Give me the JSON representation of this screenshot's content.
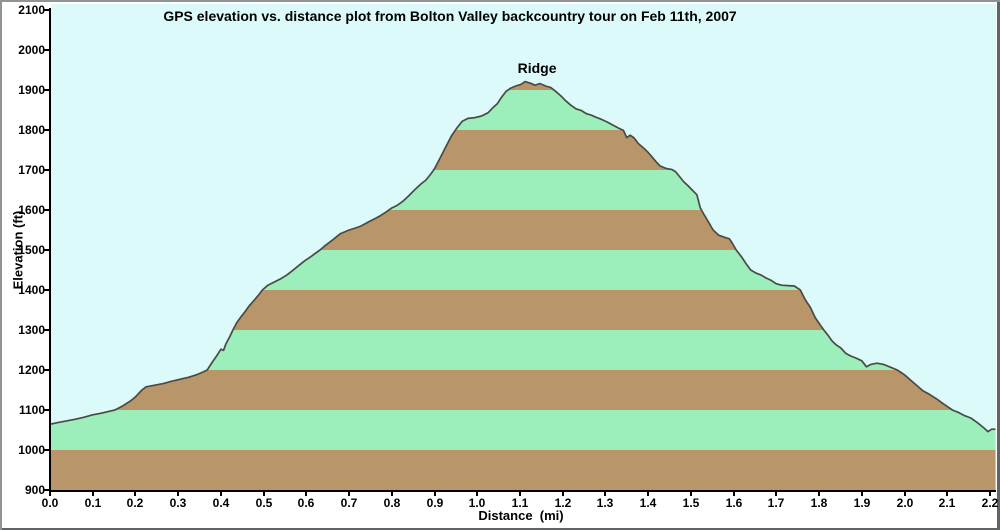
{
  "chart": {
    "title": "GPS elevation vs. distance plot from Bolton Valley backcountry tour on Feb 11th, 2007",
    "x_axis_label": "Distance  (mi)",
    "y_axis_label": "Elevation (ft)",
    "annotation_label": "Ridge"
  },
  "colors": {
    "plot_background": "#dcfafa",
    "band_brown": "#b9966a",
    "band_green": "#9ceebb",
    "curve_line": "#4a4a44",
    "axis": "#000000",
    "text": "#000000",
    "margin_background": "#ffffff"
  },
  "chart_data": {
    "type": "area",
    "title": "GPS elevation vs. distance plot from Bolton Valley backcountry tour on Feb 11th, 2007",
    "xlabel": "Distance (mi)",
    "ylabel": "Elevation (ft)",
    "xlim": [
      0.0,
      2.2
    ],
    "ylim": [
      900,
      2100
    ],
    "grid": false,
    "legend": "none",
    "x_ticks": [
      "0.0",
      "0.1",
      "0.2",
      "0.3",
      "0.4",
      "0.5",
      "0.6",
      "0.7",
      "0.8",
      "0.9",
      "1.0",
      "1.1",
      "1.2",
      "1.3",
      "1.4",
      "1.5",
      "1.6",
      "1.7",
      "1.8",
      "1.9",
      "2.0",
      "2.1",
      "2.2"
    ],
    "y_ticks": [
      900,
      1000,
      1100,
      1200,
      1300,
      1400,
      1500,
      1600,
      1700,
      1800,
      1900,
      2000,
      2100
    ],
    "band_interval_ft": 100,
    "band_colors_alternating_from_900": [
      "brown",
      "green"
    ],
    "annotations": [
      {
        "text": "Ridge",
        "x_mi": 1.14,
        "y_ft": 1975
      }
    ],
    "peak": {
      "x_mi": 1.112,
      "y_ft": 1921
    },
    "start_elevation_ft": 1065,
    "end_elevation_ft": 1052,
    "profile": [
      [
        0.0,
        1065
      ],
      [
        0.02,
        1069
      ],
      [
        0.04,
        1073
      ],
      [
        0.06,
        1077
      ],
      [
        0.08,
        1082
      ],
      [
        0.1,
        1088
      ],
      [
        0.12,
        1092
      ],
      [
        0.14,
        1097
      ],
      [
        0.152,
        1100
      ],
      [
        0.17,
        1110
      ],
      [
        0.19,
        1124
      ],
      [
        0.2,
        1133
      ],
      [
        0.215,
        1150
      ],
      [
        0.225,
        1158
      ],
      [
        0.245,
        1162
      ],
      [
        0.265,
        1166
      ],
      [
        0.285,
        1172
      ],
      [
        0.305,
        1177
      ],
      [
        0.325,
        1182
      ],
      [
        0.345,
        1189
      ],
      [
        0.358,
        1195
      ],
      [
        0.368,
        1200
      ],
      [
        0.38,
        1220
      ],
      [
        0.39,
        1235
      ],
      [
        0.4,
        1252
      ],
      [
        0.406,
        1249
      ],
      [
        0.412,
        1266
      ],
      [
        0.42,
        1282
      ],
      [
        0.428,
        1300
      ],
      [
        0.437,
        1318
      ],
      [
        0.447,
        1333
      ],
      [
        0.456,
        1345
      ],
      [
        0.466,
        1360
      ],
      [
        0.476,
        1372
      ],
      [
        0.487,
        1386
      ],
      [
        0.497,
        1400
      ],
      [
        0.51,
        1412
      ],
      [
        0.525,
        1420
      ],
      [
        0.54,
        1428
      ],
      [
        0.555,
        1438
      ],
      [
        0.568,
        1449
      ],
      [
        0.582,
        1461
      ],
      [
        0.596,
        1473
      ],
      [
        0.61,
        1483
      ],
      [
        0.632,
        1500
      ],
      [
        0.645,
        1512
      ],
      [
        0.66,
        1524
      ],
      [
        0.68,
        1541
      ],
      [
        0.7,
        1550
      ],
      [
        0.715,
        1555
      ],
      [
        0.728,
        1560
      ],
      [
        0.745,
        1570
      ],
      [
        0.76,
        1578
      ],
      [
        0.772,
        1585
      ],
      [
        0.785,
        1594
      ],
      [
        0.8,
        1605
      ],
      [
        0.813,
        1612
      ],
      [
        0.825,
        1621
      ],
      [
        0.84,
        1636
      ],
      [
        0.855,
        1652
      ],
      [
        0.868,
        1665
      ],
      [
        0.88,
        1675
      ],
      [
        0.892,
        1691
      ],
      [
        0.9,
        1703
      ],
      [
        0.913,
        1730
      ],
      [
        0.925,
        1755
      ],
      [
        0.94,
        1786
      ],
      [
        0.953,
        1806
      ],
      [
        0.965,
        1822
      ],
      [
        0.978,
        1829
      ],
      [
        0.995,
        1831
      ],
      [
        1.01,
        1835
      ],
      [
        1.025,
        1843
      ],
      [
        1.035,
        1854
      ],
      [
        1.047,
        1866
      ],
      [
        1.057,
        1882
      ],
      [
        1.067,
        1896
      ],
      [
        1.077,
        1904
      ],
      [
        1.09,
        1910
      ],
      [
        1.102,
        1914
      ],
      [
        1.112,
        1921
      ],
      [
        1.124,
        1917
      ],
      [
        1.135,
        1912
      ],
      [
        1.147,
        1916
      ],
      [
        1.16,
        1910
      ],
      [
        1.172,
        1906
      ],
      [
        1.182,
        1898
      ],
      [
        1.195,
        1886
      ],
      [
        1.207,
        1873
      ],
      [
        1.219,
        1862
      ],
      [
        1.231,
        1853
      ],
      [
        1.243,
        1849
      ],
      [
        1.255,
        1841
      ],
      [
        1.267,
        1837
      ],
      [
        1.28,
        1831
      ],
      [
        1.292,
        1826
      ],
      [
        1.304,
        1820
      ],
      [
        1.318,
        1812
      ],
      [
        1.33,
        1805
      ],
      [
        1.342,
        1799
      ],
      [
        1.35,
        1781
      ],
      [
        1.358,
        1787
      ],
      [
        1.367,
        1780
      ],
      [
        1.377,
        1766
      ],
      [
        1.388,
        1756
      ],
      [
        1.398,
        1746
      ],
      [
        1.408,
        1734
      ],
      [
        1.418,
        1721
      ],
      [
        1.428,
        1710
      ],
      [
        1.442,
        1704
      ],
      [
        1.456,
        1701
      ],
      [
        1.464,
        1696
      ],
      [
        1.473,
        1684
      ],
      [
        1.483,
        1671
      ],
      [
        1.493,
        1661
      ],
      [
        1.503,
        1650
      ],
      [
        1.514,
        1638
      ],
      [
        1.522,
        1605
      ],
      [
        1.53,
        1590
      ],
      [
        1.54,
        1572
      ],
      [
        1.552,
        1550
      ],
      [
        1.565,
        1537
      ],
      [
        1.578,
        1532
      ],
      [
        1.59,
        1528
      ],
      [
        1.598,
        1515
      ],
      [
        1.606,
        1500
      ],
      [
        1.619,
        1482
      ],
      [
        1.629,
        1466
      ],
      [
        1.64,
        1450
      ],
      [
        1.653,
        1442
      ],
      [
        1.665,
        1437
      ],
      [
        1.676,
        1430
      ],
      [
        1.688,
        1424
      ],
      [
        1.699,
        1416
      ],
      [
        1.712,
        1412
      ],
      [
        1.727,
        1411
      ],
      [
        1.742,
        1410
      ],
      [
        1.756,
        1400
      ],
      [
        1.768,
        1375
      ],
      [
        1.78,
        1356
      ],
      [
        1.791,
        1331
      ],
      [
        1.803,
        1312
      ],
      [
        1.811,
        1300
      ],
      [
        1.82,
        1288
      ],
      [
        1.831,
        1272
      ],
      [
        1.841,
        1262
      ],
      [
        1.851,
        1255
      ],
      [
        1.862,
        1242
      ],
      [
        1.874,
        1235
      ],
      [
        1.886,
        1230
      ],
      [
        1.9,
        1223
      ],
      [
        1.911,
        1208
      ],
      [
        1.921,
        1214
      ],
      [
        1.935,
        1217
      ],
      [
        1.951,
        1214
      ],
      [
        1.967,
        1207
      ],
      [
        1.983,
        1200
      ],
      [
        2.0,
        1188
      ],
      [
        2.015,
        1174
      ],
      [
        2.03,
        1160
      ],
      [
        2.043,
        1148
      ],
      [
        2.06,
        1138
      ],
      [
        2.076,
        1127
      ],
      [
        2.09,
        1116
      ],
      [
        2.112,
        1100
      ],
      [
        2.126,
        1094
      ],
      [
        2.14,
        1086
      ],
      [
        2.155,
        1080
      ],
      [
        2.171,
        1068
      ],
      [
        2.186,
        1055
      ],
      [
        2.195,
        1046
      ],
      [
        2.204,
        1052
      ],
      [
        2.213,
        1052
      ]
    ]
  }
}
